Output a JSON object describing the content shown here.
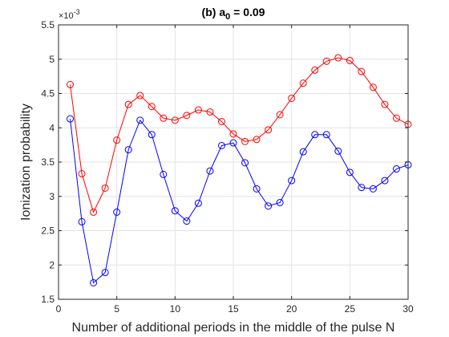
{
  "chart_data": {
    "type": "line",
    "title": {
      "prefix": "(b) a",
      "subscript": "0",
      "suffix": " = 0.09"
    },
    "xlabel": "Number of additional periods in the middle of the pulse N",
    "ylabel": "Ionization probability",
    "y_exponent_label": "×10",
    "y_exponent": "-3",
    "xlim": [
      0,
      30
    ],
    "ylim": [
      1.5,
      5.5
    ],
    "x_ticks": [
      0,
      5,
      10,
      15,
      20,
      25,
      30
    ],
    "x_tick_labels": [
      "0",
      "5",
      "10",
      "15",
      "20",
      "25",
      "30"
    ],
    "y_ticks": [
      1.5,
      2,
      2.5,
      3,
      3.5,
      4,
      4.5,
      5,
      5.5
    ],
    "y_tick_labels": [
      "1.5",
      "2",
      "2.5",
      "3",
      "3.5",
      "4",
      "4.5",
      "5",
      "5.5"
    ],
    "grid": true,
    "x": [
      1,
      2,
      3,
      4,
      5,
      6,
      7,
      8,
      9,
      10,
      11,
      12,
      13,
      14,
      15,
      16,
      17,
      18,
      19,
      20,
      21,
      22,
      23,
      24,
      25,
      26,
      27,
      28,
      29,
      30
    ],
    "series": [
      {
        "color": "#ff0000",
        "marker": "circle",
        "values": [
          4.63,
          3.33,
          2.77,
          3.12,
          3.82,
          4.34,
          4.47,
          4.31,
          4.14,
          4.11,
          4.18,
          4.26,
          4.23,
          4.09,
          3.91,
          3.8,
          3.83,
          3.97,
          4.19,
          4.43,
          4.65,
          4.84,
          4.97,
          5.02,
          4.98,
          4.82,
          4.59,
          4.34,
          4.14,
          4.05
        ]
      },
      {
        "color": "#0000ff",
        "marker": "circle",
        "values": [
          4.13,
          2.63,
          1.74,
          1.89,
          2.77,
          3.68,
          4.11,
          3.9,
          3.32,
          2.79,
          2.64,
          2.9,
          3.37,
          3.74,
          3.78,
          3.49,
          3.11,
          2.86,
          2.91,
          3.23,
          3.65,
          3.9,
          3.9,
          3.66,
          3.35,
          3.13,
          3.11,
          3.23,
          3.4,
          3.46
        ]
      }
    ]
  }
}
